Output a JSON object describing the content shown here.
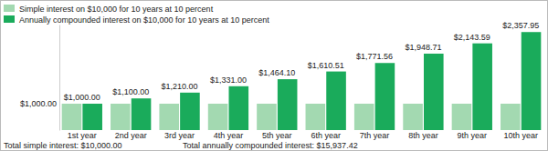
{
  "chart_data": {
    "type": "bar",
    "categories": [
      "1st year",
      "2nd year",
      "3rd year",
      "4th year",
      "5th year",
      "6th year",
      "7th year",
      "8th year",
      "9th year",
      "10th year"
    ],
    "series": [
      {
        "name": "Simple interest on $10,000 for 10 years at 10 percent",
        "color": "#a3d9b1",
        "values": [
          1000,
          1000,
          1000,
          1000,
          1000,
          1000,
          1000,
          1000,
          1000,
          1000
        ],
        "data_labels": false
      },
      {
        "name": "Annually compounded interest on $10,000 for 10 years at 10 percent",
        "color": "#1aab5b",
        "values": [
          1000,
          1100,
          1210,
          1331,
          1464.1,
          1610.51,
          1771.56,
          1948.71,
          2143.59,
          2357.95
        ],
        "value_labels": [
          "$1,000.00",
          "$1,100.00",
          "$1,210.00",
          "$1,331.00",
          "$1,464.10",
          "$1,610.51",
          "$1,771.56",
          "$1,948.71",
          "$2,143.59",
          "$2,357.95"
        ],
        "data_labels": true
      }
    ],
    "ylim": [
      500,
      2500
    ],
    "yticks": [
      {
        "value": 1000,
        "label": "$1,000.00"
      }
    ],
    "grid": false,
    "legend": "top-left",
    "annotations": [
      "Total simple interest: $10,000.00",
      "Total annually compounded interest: $15,937.42"
    ]
  }
}
